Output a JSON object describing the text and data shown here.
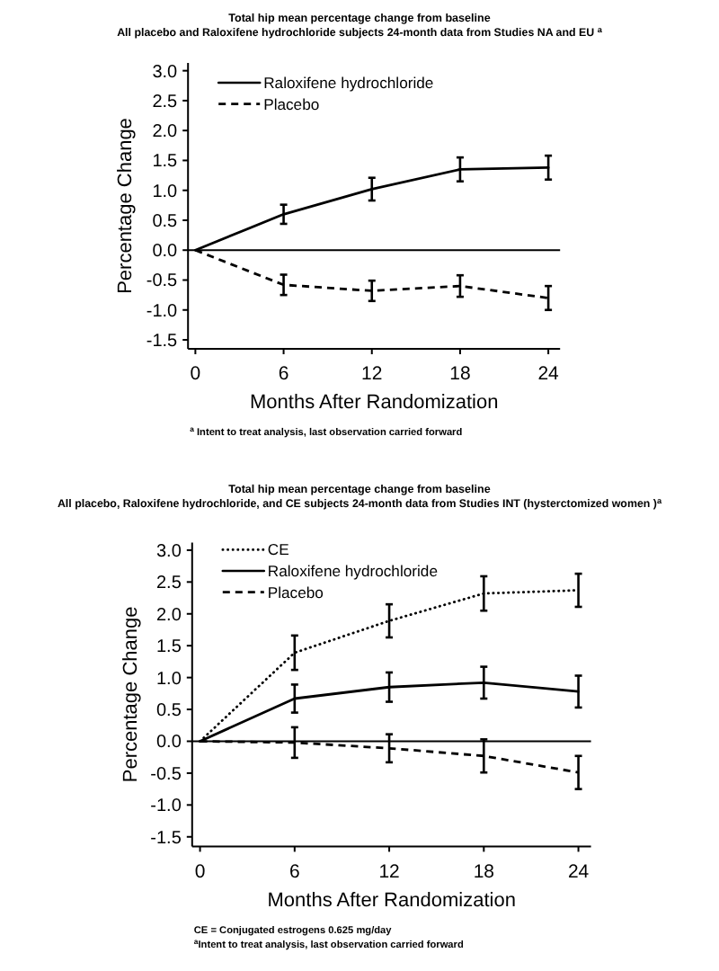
{
  "chart_data": [
    {
      "type": "line",
      "title": "Total hip mean percentage change from baseline",
      "subtitle": "All placebo and Raloxifene hydrochloride subjects 24-month data from Studies NA and EU $^{a}$",
      "xlabel": "Months After Randomization",
      "ylabel": "Percentage Change",
      "x": [
        0,
        6,
        12,
        18,
        24
      ],
      "series": [
        {
          "name": "Raloxifene hydrochloride",
          "color": "#000000",
          "line_style": "solid",
          "values": [
            0,
            0.6,
            1.02,
            1.35,
            1.38
          ],
          "errors": [
            null,
            0.16,
            0.19,
            0.2,
            0.2
          ]
        },
        {
          "name": "Placebo",
          "color": "#000000",
          "line_style": "dashed",
          "values": [
            0,
            -0.58,
            -0.68,
            -0.6,
            -0.8
          ],
          "errors": [
            null,
            0.17,
            0.17,
            0.18,
            0.2
          ]
        }
      ],
      "xlim": [
        -0.5,
        24.8
      ],
      "ylim": [
        -1.65,
        3.13
      ],
      "xticks": [
        0,
        6,
        12,
        18,
        24
      ],
      "yticks": [
        -1.5,
        {
          "value": -1,
          "label": "-1.0"
        },
        -0.5,
        {
          "value": 0,
          "label": "0.0"
        },
        0.5,
        {
          "value": 1,
          "label": "1.0"
        },
        1.5,
        {
          "value": 2,
          "label": "2.0"
        },
        2.5,
        {
          "value": 3,
          "label": "3.0"
        }
      ],
      "ref_lines": [
        {
          "axis": "y",
          "value": 0,
          "color": "#000000"
        }
      ],
      "legend": "top left",
      "annotations": [
        "$^{a}$ Intent to treat analysis, last observation carried forward"
      ]
    },
    {
      "type": "line",
      "title": "Total hip mean percentage change from baseline",
      "subtitle": "All placebo, Raloxifene hydrochloride, and CE subjects 24-month data from Studies INT (hysterctomized women )$^{a}$",
      "xlabel": "Months After Randomization",
      "ylabel": "Percentage Change",
      "x": [
        0,
        6,
        12,
        18,
        24
      ],
      "series": [
        {
          "name": "CE",
          "color": "#000000",
          "line_style": "dotted",
          "values": [
            0,
            1.39,
            1.89,
            2.32,
            2.37
          ],
          "errors": [
            null,
            0.27,
            0.26,
            0.27,
            0.26
          ]
        },
        {
          "name": "Raloxifene hydrochloride",
          "color": "#000000",
          "line_style": "solid",
          "values": [
            0,
            0.67,
            0.85,
            0.92,
            0.78
          ],
          "errors": [
            null,
            0.22,
            0.23,
            0.25,
            0.25
          ]
        },
        {
          "name": "Placebo",
          "color": "#000000",
          "line_style": "dashed",
          "values": [
            0,
            -0.02,
            -0.11,
            -0.23,
            -0.49
          ],
          "errors": [
            null,
            0.24,
            0.22,
            0.26,
            0.26
          ]
        }
      ],
      "xlim": [
        -0.5,
        24.8
      ],
      "ylim": [
        -1.65,
        3.12
      ],
      "xticks": [
        0,
        6,
        12,
        18,
        24
      ],
      "yticks": [
        -1.5,
        {
          "value": -1,
          "label": "-1.0"
        },
        -0.5,
        {
          "value": 0,
          "label": "0.0"
        },
        0.5,
        {
          "value": 1,
          "label": "1.0"
        },
        1.5,
        {
          "value": 2,
          "label": "2.0"
        },
        2.5,
        {
          "value": 3,
          "label": "3.0"
        }
      ],
      "ref_lines": [
        {
          "axis": "y",
          "value": 0,
          "color": "#000000"
        }
      ],
      "legend": "top left",
      "annotations": [
        "CE = Conjugated estrogens 0.625 mg/day",
        "$^{a}$Intent to treat analysis, last observation carried forward"
      ]
    }
  ]
}
